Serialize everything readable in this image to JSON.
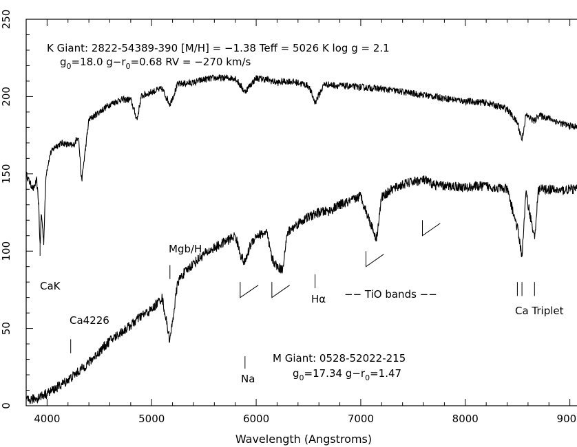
{
  "chart_data": {
    "type": "line",
    "xlabel": "Wavelength (Angstroms)",
    "ylabel": "",
    "xlim": [
      3800,
      9200
    ],
    "ylim": [
      0,
      250
    ],
    "x_ticks": [
      4000,
      5000,
      6000,
      7000,
      8000,
      9000
    ],
    "x_tick_labels": [
      "4000",
      "5000",
      "6000",
      "7000",
      "8000",
      "9000"
    ],
    "y_ticks": [
      0,
      50,
      100,
      150,
      200,
      250
    ],
    "y_tick_labels": [
      "0",
      "50",
      "100",
      "150",
      "200",
      "250"
    ],
    "series": [
      {
        "name": "K Giant",
        "x": [
          3800,
          3830,
          3870,
          3900,
          3920,
          3933,
          3945,
          3968,
          3990,
          4030,
          4080,
          4150,
          4250,
          4300,
          4330,
          4400,
          4500,
          4600,
          4700,
          4800,
          4861,
          4900,
          5000,
          5100,
          5175,
          5250,
          5400,
          5500,
          5600,
          5700,
          5800,
          5890,
          6000,
          6100,
          6200,
          6300,
          6400,
          6500,
          6563,
          6650,
          6800,
          7000,
          7200,
          7400,
          7600,
          7800,
          8000,
          8200,
          8400,
          8498,
          8542,
          8580,
          8662,
          8700,
          8800,
          8900,
          9000,
          9100,
          9200
        ],
        "y": [
          150,
          145,
          140,
          146,
          130,
          102,
          125,
          106,
          150,
          163,
          168,
          170,
          168,
          175,
          145,
          185,
          190,
          195,
          198,
          198,
          185,
          200,
          203,
          205,
          195,
          208,
          209,
          211,
          212,
          212,
          212,
          203,
          212,
          211,
          209,
          210,
          209,
          207,
          196,
          208,
          207,
          206,
          205,
          203,
          201,
          199,
          197,
          196,
          192,
          183,
          172,
          188,
          184,
          188,
          186,
          183,
          181,
          180,
          178
        ]
      },
      {
        "name": "M Giant",
        "x": [
          3800,
          3900,
          4000,
          4100,
          4226,
          4300,
          4400,
          4500,
          4600,
          4700,
          4800,
          4900,
          5000,
          5100,
          5175,
          5250,
          5300,
          5400,
          5500,
          5600,
          5700,
          5800,
          5850,
          5890,
          5950,
          6000,
          6100,
          6150,
          6200,
          6250,
          6300,
          6400,
          6500,
          6600,
          6700,
          6800,
          6900,
          7000,
          7050,
          7150,
          7200,
          7300,
          7400,
          7500,
          7600,
          7700,
          7800,
          7900,
          8000,
          8100,
          8200,
          8300,
          8400,
          8498,
          8542,
          8580,
          8662,
          8700,
          8800,
          8900,
          9000,
          9100,
          9200
        ],
        "y": [
          3,
          5,
          8,
          12,
          18,
          22,
          28,
          35,
          42,
          47,
          52,
          58,
          62,
          70,
          42,
          80,
          85,
          92,
          98,
          102,
          106,
          110,
          98,
          92,
          105,
          110,
          112,
          95,
          90,
          88,
          112,
          118,
          122,
          125,
          126,
          130,
          132,
          136,
          126,
          108,
          135,
          140,
          143,
          145,
          146,
          143,
          142,
          142,
          141,
          142,
          142,
          141,
          140,
          115,
          97,
          138,
          108,
          140,
          140,
          139,
          140,
          140,
          140
        ]
      }
    ],
    "annotations": {
      "k_title_line1": "K Giant: 2822-54389-390 [M/H] = −1.38 Teff = 5026 K log g = 2.1",
      "k_title_line2_g0": "g",
      "k_title_line2_sub0": "0",
      "k_title_line2_mid": "=18.0 g−r",
      "k_title_line2_sub1": "0",
      "k_title_line2_end": "=0.68 RV = −270 km/s",
      "m_title_line1": "M Giant: 0528-52022-215",
      "m_title_line2_g0": "g",
      "m_title_line2_sub0": "0",
      "m_title_line2_mid": "=17.34 g−r",
      "m_title_line2_sub1": "0",
      "m_title_line2_end": "=1.47",
      "cak": "CaK",
      "ca4226": "Ca4226",
      "mgbh": "Mgb/H",
      "na": "Na",
      "halpha": "Hα",
      "tio": "−− TiO bands −−",
      "ca_triplet": "Ca Triplet"
    },
    "markers": {
      "cak": {
        "x": 3933,
        "y1": 97,
        "y2": 106
      },
      "ca4226": {
        "x": 4226,
        "y1": 34,
        "y2": 43
      },
      "mgb": {
        "x": 5175,
        "y1": 82,
        "y2": 91
      },
      "na": {
        "x": 5893,
        "y1": 24,
        "y2": 32
      },
      "halpha": {
        "x": 6563,
        "y1": 76,
        "y2": 85
      },
      "ca_triplet": [
        8498,
        8542,
        8662
      ],
      "ca_triplet_y": [
        71,
        80
      ],
      "tio_bands": [
        {
          "x": 5847,
          "y_top": 80,
          "y_bottom": 70,
          "x_end": 6020,
          "y_end": 78
        },
        {
          "x": 6150,
          "y_top": 80,
          "y_bottom": 70,
          "x_end": 6320,
          "y_end": 78
        },
        {
          "x": 7050,
          "y_top": 100,
          "y_bottom": 90,
          "x_end": 7220,
          "y_end": 98
        },
        {
          "x": 7590,
          "y_top": 120,
          "y_bottom": 110,
          "x_end": 7760,
          "y_end": 118
        }
      ]
    }
  }
}
